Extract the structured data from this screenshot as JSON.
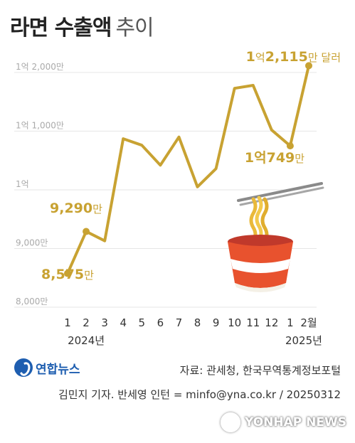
{
  "title": {
    "main": "라면 수출액",
    "sub": "추이"
  },
  "colors": {
    "line": "#c8a232",
    "label": "#c8a232",
    "grid": "#e6e6e6",
    "tick": "#aaaaaa",
    "text": "#333333",
    "logo": "#1e5eb0",
    "cup": "#e8522e"
  },
  "chart_data": {
    "type": "line",
    "title": "라면 수출액 추이",
    "unit": "달러",
    "categories": [
      "1",
      "2",
      "3",
      "4",
      "5",
      "6",
      "7",
      "8",
      "9",
      "10",
      "11",
      "12",
      "1",
      "2월"
    ],
    "year_labels": [
      "2024년",
      "2025년"
    ],
    "series": [
      {
        "values": [
          8575,
          9290,
          9130,
          10870,
          10760,
          10420,
          10900,
          10050,
          10360,
          11730,
          11780,
          11020,
          10749,
          12115
        ]
      }
    ],
    "y_ticks": [
      "8,000만",
      "9,000만",
      "1억",
      "1억 1,000만",
      "1억 2,000만"
    ],
    "y_tick_values": [
      8000,
      9000,
      10000,
      11000,
      12000
    ],
    "ylim": [
      8000,
      12350
    ],
    "grid": true,
    "annotations": [
      {
        "index": 0,
        "number": "8,575",
        "suffix": "만"
      },
      {
        "index": 1,
        "number": "9,290",
        "suffix": "만"
      },
      {
        "index": 12,
        "prefix": "1억",
        "number": "749",
        "suffix": "만"
      },
      {
        "index": 13,
        "prefix": "1",
        "mid": "억",
        "number": "2,115",
        "suffix": "만 달러"
      }
    ]
  },
  "illustration": {
    "name": "ramen-cup-icon"
  },
  "footer": {
    "logo_text": "연합뉴스",
    "source": "자료: 관세청, 한국무역통계정보포털",
    "credit": "김민지 기자. 반세영 인턴 = minfo@yna.co.kr / 20250312",
    "watermark": "YONHAP NEWS"
  }
}
